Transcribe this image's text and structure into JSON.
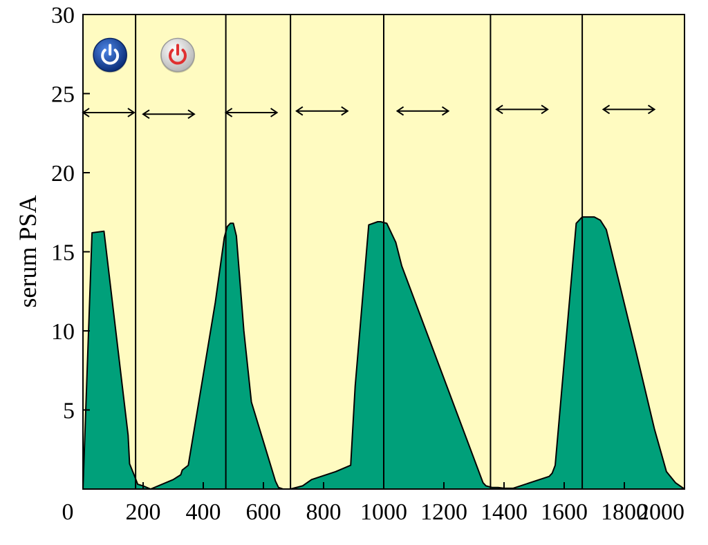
{
  "chart_data": {
    "type": "area",
    "title": "",
    "xlabel": "",
    "ylabel": "serum PSA",
    "xlim": [
      0,
      2000
    ],
    "ylim": [
      0,
      30
    ],
    "x_ticks": [
      0,
      200,
      400,
      600,
      800,
      1000,
      1200,
      1400,
      1600,
      1800,
      2000
    ],
    "y_ticks": [
      5,
      10,
      15,
      20,
      25,
      30
    ],
    "grid": false,
    "colors": {
      "background": "#FFFBC1",
      "area_fill": "#00A07A",
      "area_outline": "#000000",
      "axis": "#000000",
      "switch_on_button": "#1F4FA8",
      "switch_off_button": "#E03030"
    },
    "series": [
      {
        "x": [
          0,
          30,
          70,
          150,
          155,
          170,
          182,
          200,
          225,
          300,
          325,
          330,
          350,
          440,
          470,
          480,
          490,
          500,
          510,
          535,
          560,
          640,
          650,
          665,
          690,
          730,
          760,
          840,
          890,
          905,
          950,
          980,
          990,
          1010,
          1040,
          1060,
          1330,
          1340,
          1360,
          1380,
          1400,
          1430,
          1550,
          1560,
          1570,
          1640,
          1660,
          1680,
          1700,
          1720,
          1740,
          1840,
          1900,
          1940,
          1970,
          2000
        ],
        "y": [
          0.0,
          16.2,
          16.3,
          3.4,
          1.6,
          0.9,
          0.3,
          0.2,
          0.0,
          0.6,
          0.9,
          1.2,
          1.5,
          11.8,
          15.9,
          16.6,
          16.8,
          16.8,
          16.0,
          10.0,
          5.5,
          0.5,
          0.1,
          0.0,
          0.0,
          0.2,
          0.6,
          1.1,
          1.5,
          6.5,
          16.7,
          16.9,
          16.9,
          16.8,
          15.6,
          14.1,
          0.4,
          0.2,
          0.1,
          0.1,
          0.05,
          0.05,
          0.8,
          1.0,
          1.5,
          16.8,
          17.2,
          17.2,
          17.2,
          17.0,
          16.4,
          8.6,
          3.8,
          1.1,
          0.4,
          0.0
        ]
      }
    ],
    "therapy_switch_lines_x": [
      175,
      475,
      1000,
      1660
    ],
    "cycle_boundary_lines_x": [
      690,
      1355
    ],
    "window_arrows": [
      {
        "x_start": 0,
        "x_end": 170,
        "y": 23.8
      },
      {
        "x_start": 200,
        "x_end": 370,
        "y": 23.7
      },
      {
        "x_start": 475,
        "x_end": 645,
        "y": 23.8
      },
      {
        "x_start": 710,
        "x_end": 880,
        "y": 23.9
      },
      {
        "x_start": 1045,
        "x_end": 1215,
        "y": 23.9
      },
      {
        "x_start": 1375,
        "x_end": 1545,
        "y": 24.0
      },
      {
        "x_start": 1730,
        "x_end": 1900,
        "y": 24.0
      }
    ],
    "icons": [
      {
        "name": "power-on-icon",
        "x": 90,
        "y": 27.4
      },
      {
        "name": "power-off-icon",
        "x": 315,
        "y": 27.4
      }
    ]
  }
}
